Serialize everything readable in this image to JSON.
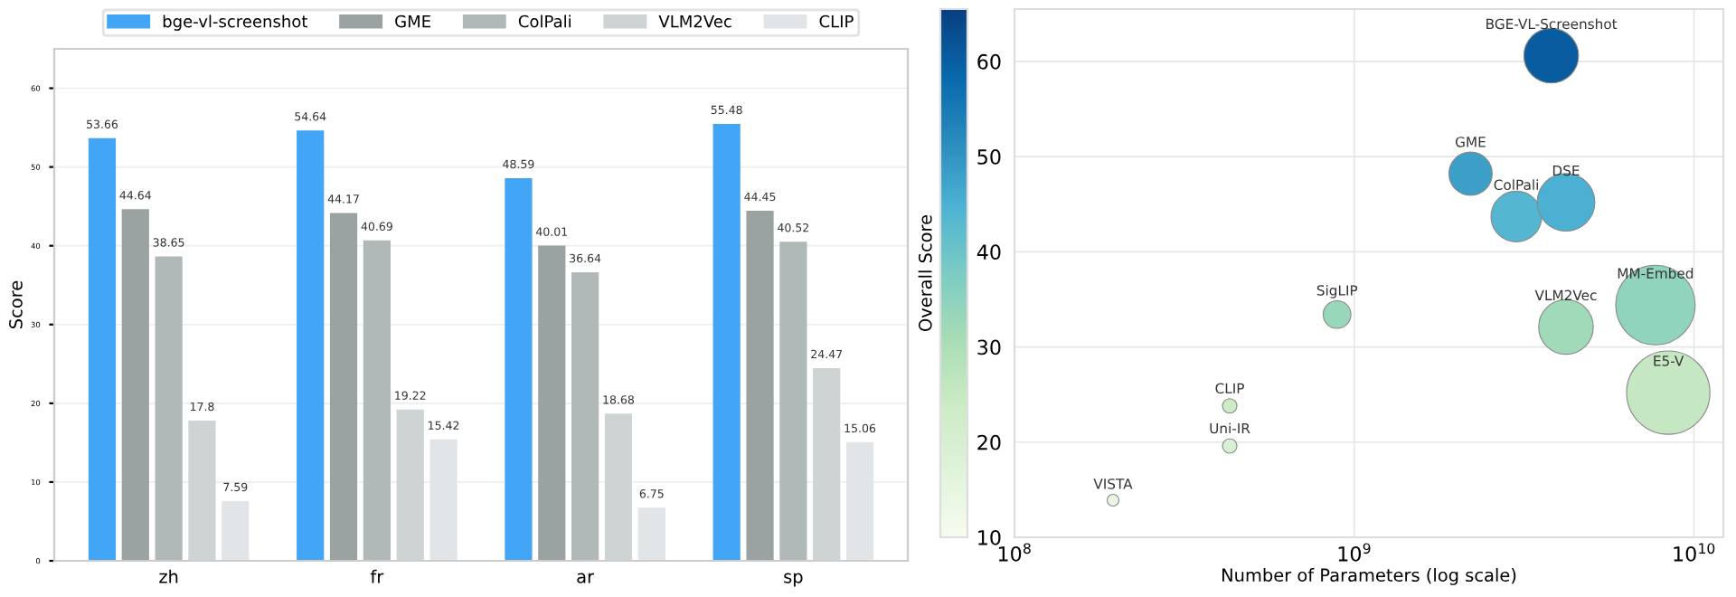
{
  "chart_data": [
    {
      "type": "bar",
      "ylabel": "Score",
      "categories": [
        "zh",
        "fr",
        "ar",
        "sp"
      ],
      "series": [
        {
          "name": "bge-vl-screenshot",
          "color": "#42a5f5",
          "values": [
            53.66,
            54.64,
            48.59,
            55.48
          ]
        },
        {
          "name": "GME",
          "color": "#9aa2a2",
          "values": [
            44.64,
            44.17,
            40.01,
            44.45
          ]
        },
        {
          "name": "ColPali",
          "color": "#b1b8b8",
          "values": [
            38.65,
            40.69,
            36.64,
            40.52
          ]
        },
        {
          "name": "VLM2Vec",
          "color": "#ced3d4",
          "values": [
            17.8,
            19.22,
            18.68,
            24.47
          ]
        },
        {
          "name": "CLIP",
          "color": "#e1e5e7",
          "values": [
            7.59,
            15.42,
            6.75,
            15.06
          ]
        }
      ],
      "ylim": [
        0,
        65
      ],
      "yticks": [
        0,
        10,
        20,
        30,
        40,
        50,
        60
      ],
      "grid": "y",
      "legend": "top",
      "data_labels": true
    },
    {
      "type": "bubble",
      "xlabel": "Number of Parameters (log scale)",
      "clabel": "Overall Score",
      "log": "x",
      "x": [
        3800000000.0,
        2200000000.0,
        3000000000.0,
        4200000000.0,
        7700000000.0,
        4200000000.0,
        8400000000.0,
        890000000.0,
        430000000.0,
        430000000.0,
        195000000.0
      ],
      "values": [
        60.6,
        48.2,
        43.7,
        45.2,
        34.4,
        32.1,
        25.2,
        33.4,
        23.8,
        19.6,
        13.9
      ],
      "cvalues": [
        60.6,
        48.2,
        43.7,
        45.2,
        34.4,
        32.1,
        25.2,
        33.4,
        23.8,
        19.6,
        13.9
      ],
      "sizes": [
        0.43,
        0.27,
        0.37,
        0.48,
        0.91,
        0.43,
        1,
        0.11,
        0.03,
        0.03,
        0.02
      ],
      "annotations": [
        {
          "text": "BGE-VL-Screenshot",
          "x": 3800000000.0,
          "y": 60.6
        },
        {
          "text": "GME",
          "x": 2200000000.0,
          "y": 48.2
        },
        {
          "text": "ColPali",
          "x": 3000000000.0,
          "y": 43.7
        },
        {
          "text": "DSE",
          "x": 4200000000.0,
          "y": 45.2
        },
        {
          "text": "MM-Embed",
          "x": 7700000000.0,
          "y": 34.4
        },
        {
          "text": "VLM2Vec",
          "x": 4200000000.0,
          "y": 32.1
        },
        {
          "text": "E5-V",
          "x": 8400000000.0,
          "y": 25.2
        },
        {
          "text": "SigLIP",
          "x": 890000000.0,
          "y": 33.4
        },
        {
          "text": "CLIP",
          "x": 430000000.0,
          "y": 23.8
        },
        {
          "text": "Uni-IR",
          "x": 430000000.0,
          "y": 19.6
        },
        {
          "text": "VISTA",
          "x": 195000000.0,
          "y": 13.9
        }
      ],
      "xlim": [
        100000000.0,
        12200000000.0
      ],
      "xticks": [
        {
          "value": 100000000.0,
          "label": "10$^{8}$"
        },
        {
          "value": 1000000000.0,
          "label": "10$^{9}$"
        },
        {
          "value": 10000000000.0,
          "label": "10$^{10}$"
        }
      ],
      "ylim": [
        10,
        65.5
      ],
      "yticks": [
        10,
        20,
        30,
        40,
        50,
        60
      ],
      "clim": [
        10,
        65.5
      ],
      "cticks": [
        10,
        20,
        30,
        40,
        50,
        60
      ],
      "tick_labels": "x",
      "grid": true
    }
  ]
}
